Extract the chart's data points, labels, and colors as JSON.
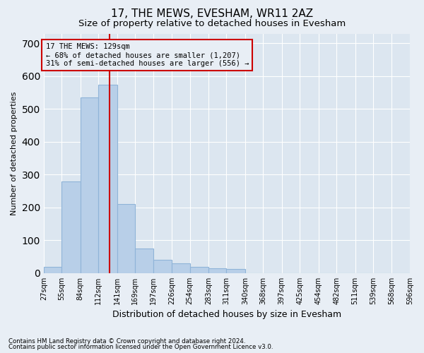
{
  "title": "17, THE MEWS, EVESHAM, WR11 2AZ",
  "subtitle": "Size of property relative to detached houses in Evesham",
  "xlabel": "Distribution of detached houses by size in Evesham",
  "ylabel": "Number of detached properties",
  "footer_line1": "Contains HM Land Registry data © Crown copyright and database right 2024.",
  "footer_line2": "Contains public sector information licensed under the Open Government Licence v3.0.",
  "bar_edges": [
    27,
    55,
    84,
    112,
    141,
    169,
    197,
    226,
    254,
    283,
    311,
    340,
    368,
    397,
    425,
    454,
    482,
    511,
    539,
    568,
    596
  ],
  "bar_heights": [
    20,
    280,
    535,
    575,
    210,
    75,
    40,
    30,
    20,
    15,
    13,
    0,
    0,
    0,
    0,
    0,
    0,
    0,
    0,
    0
  ],
  "bar_color": "#b8cfe8",
  "bar_edgecolor": "#90b4d8",
  "property_size": 129,
  "vline_color": "#cc0000",
  "annotation_line1": "17 THE MEWS: 129sqm",
  "annotation_line2": "← 68% of detached houses are smaller (1,207)",
  "annotation_line3": "31% of semi-detached houses are larger (556) →",
  "annotation_box_edgecolor": "#cc0000",
  "annotation_fontsize": 7.5,
  "ylim": [
    0,
    730
  ],
  "yticks": [
    0,
    100,
    200,
    300,
    400,
    500,
    600,
    700
  ],
  "bg_color": "#e8eef5",
  "plot_bg_color": "#dce6f0",
  "grid_color": "#ffffff",
  "title_fontsize": 11,
  "subtitle_fontsize": 9.5,
  "ylabel_fontsize": 8,
  "xlabel_fontsize": 9
}
